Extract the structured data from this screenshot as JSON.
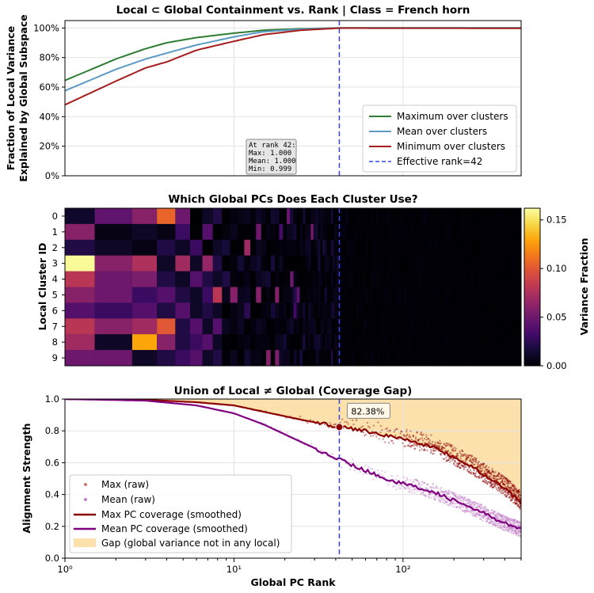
{
  "chart_data": [
    {
      "type": "line",
      "title": "Local ⊂ Global Containment vs. Rank | Class = French horn",
      "xlabel": "",
      "ylabel": [
        "Fraction of Local Variance",
        "Explained by Global Subspace"
      ],
      "xscale": "log",
      "xlim": [
        1,
        500
      ],
      "ylim": [
        0,
        1.05
      ],
      "yticks": [
        "0%",
        "20%",
        "40%",
        "60%",
        "80%",
        "100%"
      ],
      "grid": true,
      "legend_position": "lower-right",
      "series": [
        {
          "name": "Maximum over clusters",
          "color": "#2e7d32",
          "x": [
            1,
            2,
            3,
            4,
            6,
            10,
            15,
            25,
            42,
            500
          ],
          "y": [
            0.645,
            0.79,
            0.86,
            0.9,
            0.935,
            0.965,
            0.985,
            0.995,
            1.0,
            1.0
          ]
        },
        {
          "name": "Mean over clusters",
          "color": "#5b9ac4",
          "x": [
            1,
            2,
            3,
            4,
            6,
            10,
            15,
            25,
            42,
            500
          ],
          "y": [
            0.575,
            0.72,
            0.79,
            0.83,
            0.885,
            0.94,
            0.975,
            0.992,
            1.0,
            1.0
          ]
        },
        {
          "name": "Minimum over clusters",
          "color": "#a51c1c",
          "x": [
            1,
            2,
            3,
            4,
            6,
            10,
            15,
            25,
            42,
            500
          ],
          "y": [
            0.48,
            0.64,
            0.73,
            0.77,
            0.85,
            0.91,
            0.955,
            0.985,
            0.999,
            0.998
          ]
        }
      ],
      "vline": {
        "x": 42,
        "label": "Effective rank=42",
        "color": "#3344ee"
      },
      "annotation": {
        "lines": [
          "At rank 42:",
          "Max: 1.000",
          "Mean: 1.000",
          "Min: 0.999"
        ]
      }
    },
    {
      "type": "heatmap",
      "title": "Which Global PCs Does Each Cluster Use?",
      "ylabel": "Local Cluster ID",
      "rows": [
        "0",
        "1",
        "2",
        "3",
        "4",
        "5",
        "6",
        "7",
        "8",
        "9"
      ],
      "xscale": "log",
      "xlim": [
        1,
        500
      ],
      "colormap": "inferno",
      "vmin": 0,
      "vmax": 0.162,
      "colorbar_label": "Variance Fraction",
      "colorbar_ticks": [
        "0.00",
        "0.05",
        "0.10",
        "0.15"
      ],
      "first_columns": [
        [
          0.012,
          0.045,
          0.06,
          0.105,
          0.05,
          0.0,
          0.01,
          0.02
        ],
        [
          0.06,
          0.005,
          0.01,
          0.005,
          0.03,
          0.0,
          0.04,
          0.0
        ],
        [
          0.02,
          0.01,
          0.005,
          0.02,
          0.01,
          0.03,
          0.0,
          0.01
        ],
        [
          0.16,
          0.06,
          0.075,
          0.01,
          0.07,
          0.01,
          0.065,
          0.02
        ],
        [
          0.08,
          0.05,
          0.055,
          0.02,
          0.01,
          0.04,
          0.02,
          0.01
        ],
        [
          0.06,
          0.05,
          0.03,
          0.04,
          0.02,
          0.01,
          0.03,
          0.08
        ],
        [
          0.04,
          0.03,
          0.04,
          0.02,
          0.04,
          0.01,
          0.02,
          0.01
        ],
        [
          0.08,
          0.06,
          0.07,
          0.1,
          0.02,
          0.04,
          0.01,
          0.04
        ],
        [
          0.07,
          0.01,
          0.13,
          0.06,
          0.02,
          0.03,
          0.04,
          0.01
        ],
        [
          0.05,
          0.05,
          0.01,
          0.02,
          0.03,
          0.04,
          0.01,
          0.02
        ]
      ],
      "vline": {
        "x": 42,
        "color": "#3344ee"
      }
    },
    {
      "type": "line",
      "title": "Union of Local ≠ Global (Coverage Gap)",
      "xlabel": "Global PC Rank",
      "ylabel": "Alignment Strength",
      "xscale": "log",
      "xlim": [
        1,
        500
      ],
      "ylim": [
        0.0,
        1.0
      ],
      "xticks": [
        "10⁰",
        "10¹",
        "10²"
      ],
      "yticks": [
        "0.0",
        "0.2",
        "0.4",
        "0.6",
        "0.8",
        "1.0"
      ],
      "grid": true,
      "legend_position": "lower-left",
      "series": [
        {
          "name": "Max (raw)",
          "kind": "scatter",
          "color": "#c77b6b"
        },
        {
          "name": "Mean (raw)",
          "kind": "scatter",
          "color": "#c080c8"
        },
        {
          "name": "Max PC coverage (smoothed)",
          "color": "#8b0000",
          "x": [
            1,
            3,
            6,
            10,
            15,
            25,
            42,
            60,
            90,
            150,
            250,
            400,
            500
          ],
          "y": [
            1.0,
            0.995,
            0.98,
            0.96,
            0.92,
            0.87,
            0.8238,
            0.8,
            0.76,
            0.7,
            0.58,
            0.44,
            0.35
          ]
        },
        {
          "name": "Mean PC coverage (smoothed)",
          "color": "#800080",
          "x": [
            1,
            3,
            6,
            10,
            15,
            25,
            42,
            60,
            90,
            150,
            250,
            400,
            500
          ],
          "y": [
            1.0,
            0.99,
            0.96,
            0.91,
            0.84,
            0.73,
            0.62,
            0.55,
            0.48,
            0.42,
            0.32,
            0.22,
            0.18
          ]
        }
      ],
      "fill": {
        "name": "Gap (global variance not in any local)",
        "color": "#fde1ad"
      },
      "vline": {
        "x": 42,
        "color": "#3344ee"
      },
      "annotation": {
        "x": 42,
        "y": 0.8238,
        "label": "82.38%"
      }
    }
  ]
}
